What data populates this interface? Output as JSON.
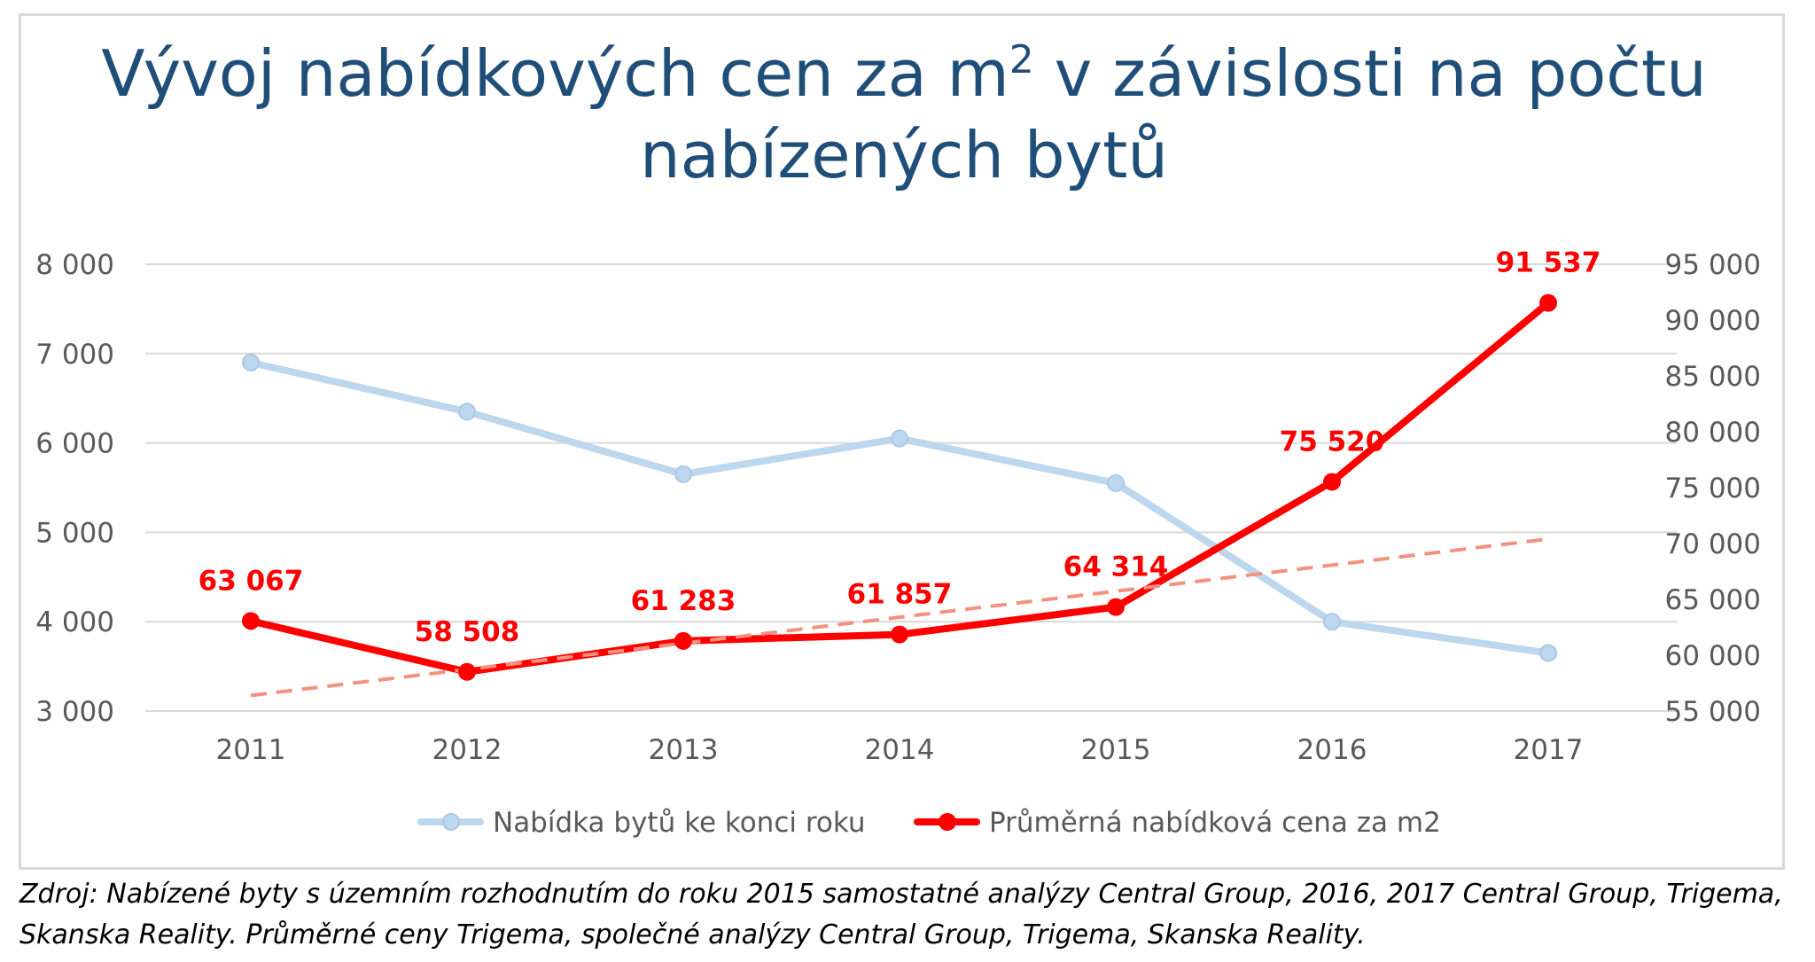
{
  "chart_data": {
    "type": "line",
    "title_parts": [
      "Vývoj nabídkových cen za m",
      "2",
      " v závislosti na počtu",
      "nabízených bytů"
    ],
    "title": "Vývoj nabídkových cen za m2 v závislosti na počtu nabízených bytů",
    "categories": [
      "2011",
      "2012",
      "2013",
      "2014",
      "2015",
      "2016",
      "2017"
    ],
    "y_left": {
      "min": 3000,
      "max": 8000,
      "step": 1000,
      "tick_labels": [
        "3 000",
        "4 000",
        "5 000",
        "6 000",
        "7 000",
        "8 000"
      ]
    },
    "y_right": {
      "min": 55000,
      "max": 95000,
      "step": 5000,
      "tick_labels": [
        "55 000",
        "60 000",
        "65 000",
        "70 000",
        "75 000",
        "80 000",
        "85 000",
        "90 000",
        "95 000"
      ]
    },
    "grid": true,
    "legend_position": "bottom",
    "series": [
      {
        "name": "Nabídka bytů ke konci roku",
        "axis": "left",
        "color": "#bdd7ee",
        "values": [
          6900,
          6350,
          5650,
          6050,
          5550,
          4000,
          3650
        ]
      },
      {
        "name": "Průměrná nabídková cena za m2",
        "axis": "right",
        "color": "#ff0000",
        "values": [
          63067,
          58508,
          61283,
          61857,
          64314,
          75520,
          91537
        ],
        "data_labels": [
          "63 067",
          "58 508",
          "61 283",
          "61 857",
          "64 314",
          "75 520",
          "91 537"
        ]
      }
    ],
    "trendline": {
      "series": "Průměrná nabídková cena za m2",
      "type": "linear",
      "color": "#f4917f",
      "values": [
        56400,
        58800,
        61100,
        63400,
        65800,
        68100,
        70400
      ]
    }
  },
  "source_note": [
    "Zdroj: Nabízené byty s územním rozhodnutím do roku 2015 samostatné analýzy Central Group, 2016, 2017 Central Group, Trigema,",
    "Skanska Reality. Průměrné ceny Trigema, společné analýzy Central Group, Trigema, Skanska Reality."
  ]
}
